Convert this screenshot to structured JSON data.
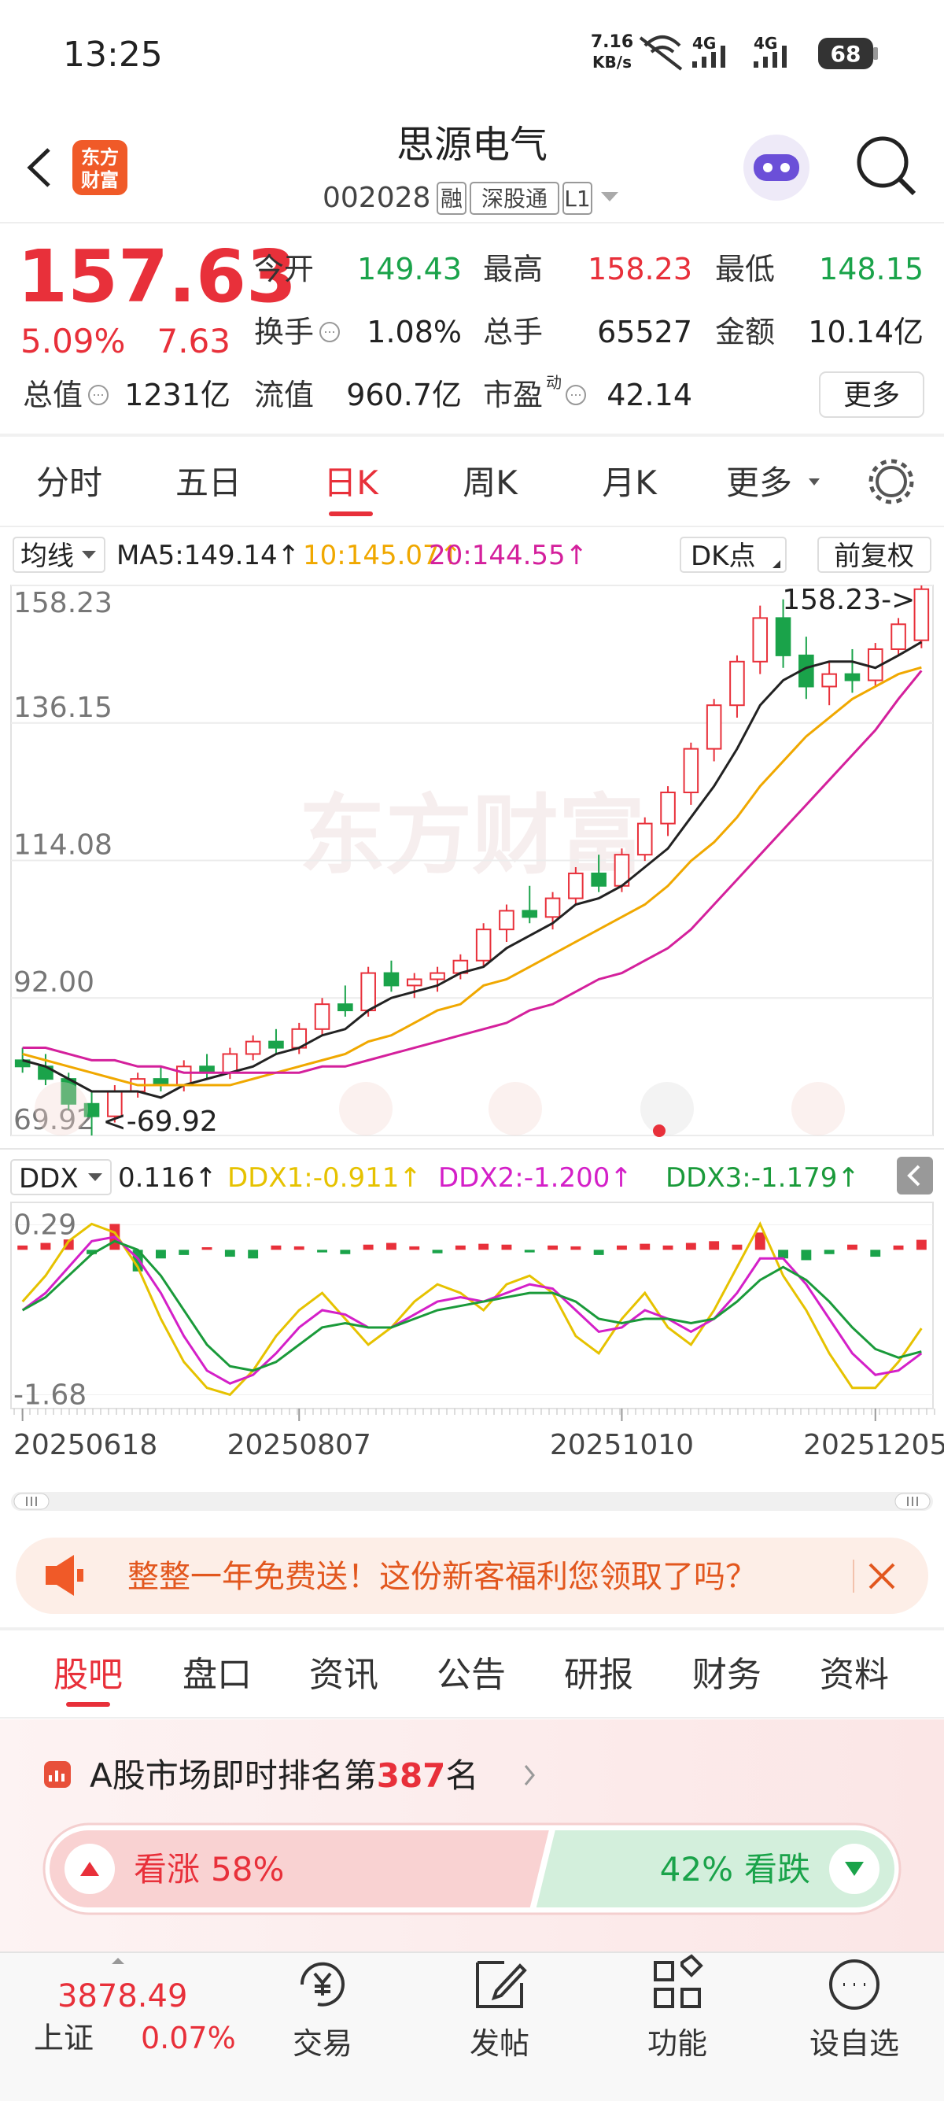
{
  "status_bar": {
    "time": "13:25",
    "net_speed": "7.16",
    "net_unit": "KB/s",
    "signal": [
      "4G",
      "4G"
    ],
    "battery": "68"
  },
  "header": {
    "logo": [
      "东方",
      "财富"
    ],
    "title": "思源电气",
    "code": "002028",
    "tags": [
      "融",
      "深股通",
      "L1"
    ]
  },
  "quote": {
    "price": "157.63",
    "change_pct": "5.09%",
    "change": "7.63",
    "tone": "up",
    "rows": [
      [
        {
          "label": "今开",
          "value": "149.43",
          "tone": "down"
        },
        {
          "label": "最高",
          "value": "158.23",
          "tone": "up"
        },
        {
          "label": "最低",
          "value": "148.15",
          "tone": "down"
        }
      ],
      [
        {
          "label": "换手",
          "value": "1.08%",
          "tone": "flat",
          "info": true
        },
        {
          "label": "总手",
          "value": "65527",
          "tone": "flat"
        },
        {
          "label": "金额",
          "value": "10.14亿",
          "tone": "flat"
        }
      ],
      [
        {
          "label": "总值",
          "value": "1231亿",
          "tone": "flat",
          "info": true
        },
        {
          "label": "流值",
          "value": "960.7亿",
          "tone": "flat"
        },
        {
          "label": "市盈",
          "sup": "动",
          "value": "42.14",
          "tone": "flat",
          "info": true
        }
      ]
    ],
    "more": "更多"
  },
  "period_tabs": {
    "items": [
      "分时",
      "五日",
      "日K",
      "周K",
      "月K",
      "更多"
    ],
    "active": 2
  },
  "chart_data": [
    {
      "type": "candlestick",
      "indicator": "均线",
      "options": [
        "DK点",
        "前复权"
      ],
      "watermark": "东方财富",
      "ylim": [
        69.92,
        158.23
      ],
      "yticks": [
        158.23,
        136.15,
        114.08,
        {
          "value": 92,
          "label": "92.00"
        },
        69.92
      ],
      "up_color": "#e8303a",
      "down_color": "#1aa34a",
      "annotations": {
        "high": "158.23->",
        "low": "<-69.92"
      },
      "ohlc": [
        [
          82,
          84,
          80,
          81
        ],
        [
          81,
          83,
          78,
          79
        ],
        [
          79,
          80,
          74,
          75
        ],
        [
          75,
          77,
          69.92,
          73
        ],
        [
          73,
          78,
          72,
          77
        ],
        [
          77,
          80,
          76,
          79
        ],
        [
          79,
          81,
          77,
          78
        ],
        [
          78,
          82,
          77,
          81
        ],
        [
          81,
          83,
          79,
          80
        ],
        [
          80,
          84,
          79,
          83
        ],
        [
          83,
          86,
          82,
          85
        ],
        [
          85,
          87,
          83,
          84
        ],
        [
          84,
          88,
          83,
          87
        ],
        [
          87,
          92,
          86,
          91
        ],
        [
          91,
          94,
          89,
          90
        ],
        [
          90,
          97,
          89,
          96
        ],
        [
          96,
          98,
          93,
          94
        ],
        [
          94,
          96,
          92,
          95
        ],
        [
          95,
          97,
          93,
          96
        ],
        [
          96,
          99,
          95,
          98
        ],
        [
          98,
          104,
          97,
          103
        ],
        [
          103,
          107,
          101,
          106
        ],
        [
          106,
          110,
          104,
          105
        ],
        [
          105,
          109,
          103,
          108
        ],
        [
          108,
          113,
          107,
          112
        ],
        [
          112,
          115,
          109,
          110
        ],
        [
          110,
          116,
          109,
          115
        ],
        [
          115,
          121,
          114,
          120
        ],
        [
          120,
          126,
          118,
          125
        ],
        [
          125,
          133,
          123,
          132
        ],
        [
          132,
          140,
          130,
          139
        ],
        [
          139,
          147,
          137,
          146
        ],
        [
          146,
          155,
          144,
          153
        ],
        [
          153,
          156,
          145,
          147
        ],
        [
          147,
          150,
          140,
          142
        ],
        [
          142,
          146,
          139,
          144
        ],
        [
          144,
          148,
          141,
          143
        ],
        [
          143,
          149,
          142,
          148
        ],
        [
          148,
          153,
          147,
          152
        ],
        [
          149.43,
          158.23,
          148.15,
          157.63
        ]
      ],
      "series": [
        {
          "legend": "MA5:149.14↑",
          "color": "#222222",
          "values": [
            82,
            81,
            79,
            77,
            77,
            77,
            76,
            78,
            79,
            80,
            81,
            83,
            84,
            86,
            87,
            90,
            92,
            93,
            94,
            96,
            97,
            100,
            102,
            104,
            107,
            108,
            110,
            113,
            116,
            121,
            126,
            132,
            139,
            143,
            145,
            146,
            146,
            145,
            147,
            149.14
          ]
        },
        {
          "legend": "10:145.07↑",
          "color": "#f0a800",
          "values": [
            83,
            82,
            81,
            80,
            79,
            78,
            78,
            78,
            78,
            78,
            79,
            80,
            81,
            82,
            83,
            85,
            86,
            88,
            90,
            91,
            94,
            95,
            97,
            99,
            101,
            103,
            105,
            107,
            110,
            114,
            117,
            121,
            126,
            130,
            134,
            137,
            140,
            142,
            144,
            145.07
          ]
        },
        {
          "legend": "20:144.55↑",
          "color": "#d4209c",
          "values": [
            84,
            84,
            83,
            82,
            82,
            81,
            81,
            80,
            80,
            80,
            80,
            80,
            80,
            81,
            81,
            82,
            83,
            84,
            85,
            86,
            87,
            88,
            90,
            91,
            93,
            95,
            96,
            98,
            100,
            103,
            107,
            111,
            115,
            119,
            123,
            127,
            131,
            135,
            140,
            144.55
          ]
        }
      ]
    },
    {
      "type": "line",
      "indicator": "DDX",
      "ylim": [
        -1.84,
        0.55
      ],
      "yticks": [
        0.29,
        -1.68
      ],
      "categories": [
        "20250618",
        null,
        null,
        null,
        null,
        null,
        null,
        null,
        null,
        null,
        null,
        null,
        "20250807",
        null,
        null,
        null,
        null,
        null,
        null,
        null,
        null,
        null,
        null,
        null,
        null,
        null,
        "20251010",
        null,
        null,
        null,
        null,
        null,
        null,
        null,
        null,
        null,
        null,
        "20251205",
        null,
        null
      ],
      "bars": {
        "legend": "0.116↑",
        "up_color": "#e8303a",
        "down_color": "#1aa34a",
        "values": [
          0.05,
          0.08,
          0.12,
          -0.05,
          0.3,
          -0.25,
          -0.1,
          -0.06,
          0.03,
          -0.08,
          -0.1,
          0.05,
          0.04,
          -0.03,
          -0.05,
          0.06,
          0.08,
          0.04,
          -0.04,
          0.05,
          0.07,
          0.06,
          -0.03,
          0.05,
          0.04,
          -0.06,
          0.05,
          0.07,
          0.05,
          0.08,
          0.1,
          0.06,
          0.2,
          -0.1,
          -0.12,
          -0.05,
          0.06,
          -0.08,
          0.05,
          0.116
        ]
      },
      "series": [
        {
          "legend": "DDX1:-0.911↑",
          "color": "#e6c200",
          "values": [
            -0.6,
            -0.3,
            0.1,
            0.3,
            0.2,
            -0.2,
            -0.8,
            -1.3,
            -1.6,
            -1.68,
            -1.4,
            -1.0,
            -0.7,
            -0.5,
            -0.8,
            -1.1,
            -0.9,
            -0.6,
            -0.4,
            -0.5,
            -0.7,
            -0.4,
            -0.3,
            -0.5,
            -1.0,
            -1.2,
            -0.8,
            -0.5,
            -0.9,
            -1.1,
            -0.7,
            -0.2,
            0.3,
            -0.3,
            -0.7,
            -1.2,
            -1.6,
            -1.6,
            -1.3,
            -0.911
          ]
        },
        {
          "legend": "DDX2:-1.200↑",
          "color": "#d420c8",
          "values": [
            -0.7,
            -0.5,
            -0.2,
            0.1,
            0.15,
            -0.1,
            -0.5,
            -1.0,
            -1.4,
            -1.55,
            -1.45,
            -1.2,
            -0.9,
            -0.7,
            -0.75,
            -0.9,
            -0.9,
            -0.75,
            -0.6,
            -0.55,
            -0.6,
            -0.5,
            -0.4,
            -0.45,
            -0.7,
            -0.95,
            -0.9,
            -0.7,
            -0.8,
            -0.95,
            -0.8,
            -0.5,
            -0.1,
            -0.1,
            -0.4,
            -0.8,
            -1.2,
            -1.45,
            -1.4,
            -1.2
          ]
        },
        {
          "legend": "DDX3:-1.179↑",
          "color": "#1a9a3a",
          "values": [
            -0.7,
            -0.55,
            -0.3,
            -0.05,
            0.1,
            0.0,
            -0.3,
            -0.7,
            -1.1,
            -1.35,
            -1.4,
            -1.3,
            -1.1,
            -0.9,
            -0.85,
            -0.9,
            -0.9,
            -0.8,
            -0.7,
            -0.65,
            -0.6,
            -0.55,
            -0.5,
            -0.5,
            -0.6,
            -0.8,
            -0.85,
            -0.8,
            -0.8,
            -0.85,
            -0.8,
            -0.6,
            -0.35,
            -0.2,
            -0.35,
            -0.6,
            -0.9,
            -1.15,
            -1.25,
            -1.179
          ]
        }
      ]
    }
  ],
  "banner": {
    "text": "整整一年免费送！这份新客福利您领取了吗？"
  },
  "section_tabs": {
    "items": [
      "股吧",
      "盘口",
      "资讯",
      "公告",
      "研报",
      "财务",
      "资料"
    ],
    "active": 0
  },
  "ranking": {
    "prefix": "A股市场即时排名第",
    "rank": "387",
    "suffix": "名",
    "bull": {
      "label": "看涨",
      "value": 58,
      "value_label": "58%"
    },
    "bear": {
      "label": "看跌",
      "value": 42,
      "value_label": "42%"
    }
  },
  "bottom_nav": {
    "index": {
      "value": "3878.49",
      "name": "上证",
      "change": "0.07%"
    },
    "items": [
      "交易",
      "发帖",
      "功能",
      "设自选"
    ]
  }
}
